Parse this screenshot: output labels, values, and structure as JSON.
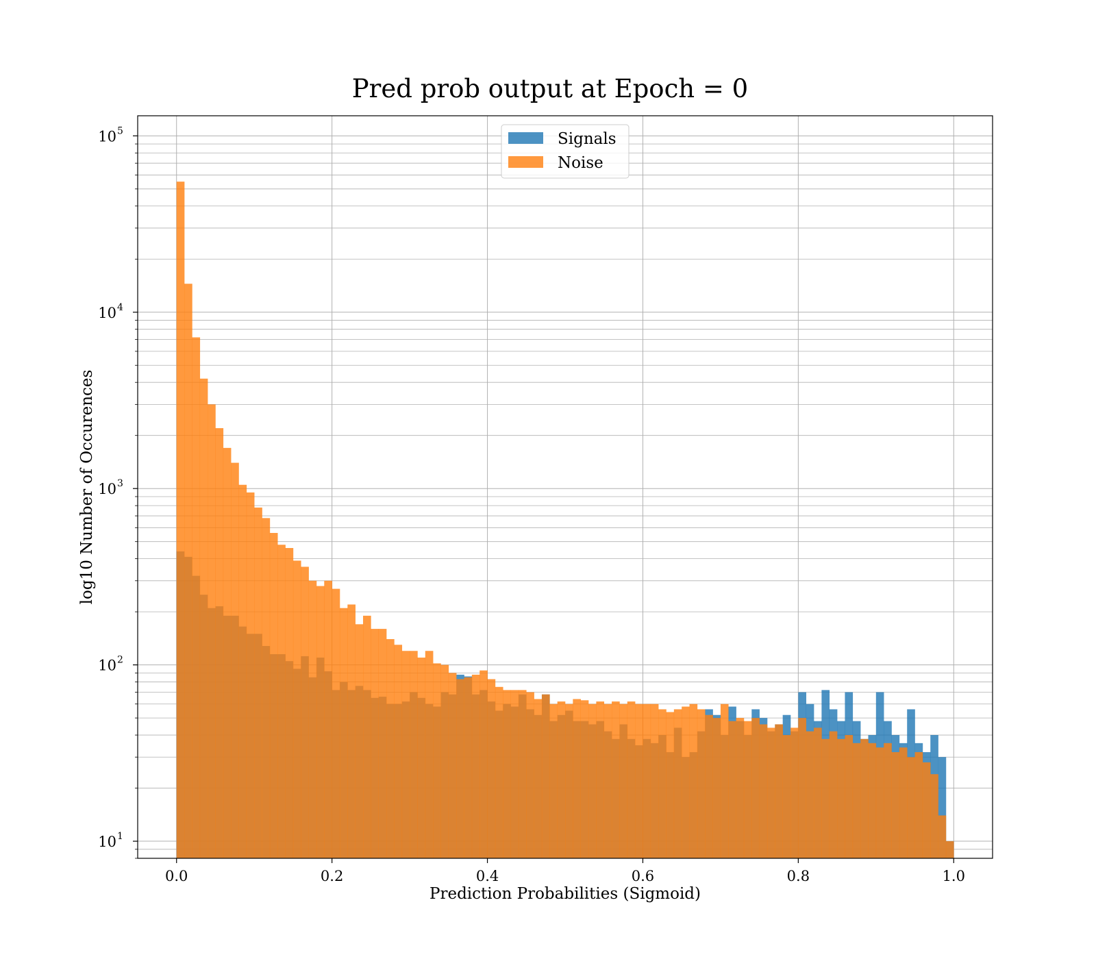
{
  "chart_data": {
    "type": "histogram",
    "title": "Pred prob output at Epoch = 0",
    "xlabel": "Prediction Probabilities (Sigmoid)",
    "ylabel": "log10 Number of Occurences",
    "y_scale": "log",
    "xlim": [
      -0.05,
      1.05
    ],
    "ylim": [
      8,
      130000
    ],
    "x_ticks": [
      0.0,
      0.2,
      0.4,
      0.6,
      0.8,
      1.0
    ],
    "x_tick_labels": [
      "0.0",
      "0.2",
      "0.4",
      "0.6",
      "0.8",
      "1.0"
    ],
    "y_ticks": [
      10,
      100,
      1000,
      10000,
      100000
    ],
    "y_tick_labels": [
      {
        "base": "10",
        "exp": "1"
      },
      {
        "base": "10",
        "exp": "2"
      },
      {
        "base": "10",
        "exp": "3"
      },
      {
        "base": "10",
        "exp": "4"
      },
      {
        "base": "10",
        "exp": "5"
      }
    ],
    "grid": true,
    "legend_position": "upper center",
    "bins": {
      "start": 0.0,
      "end": 1.0,
      "count": 100
    },
    "series": [
      {
        "name": "Signals",
        "color": "#1f77b4",
        "alpha": 0.8,
        "values": [
          440,
          410,
          320,
          250,
          210,
          215,
          190,
          190,
          165,
          150,
          150,
          128,
          115,
          115,
          105,
          95,
          112,
          85,
          110,
          92,
          72,
          80,
          72,
          76,
          72,
          65,
          66,
          60,
          60,
          62,
          70,
          65,
          60,
          58,
          70,
          68,
          88,
          86,
          68,
          72,
          62,
          55,
          60,
          58,
          68,
          56,
          52,
          68,
          48,
          52,
          55,
          48,
          48,
          46,
          48,
          42,
          38,
          46,
          38,
          35,
          38,
          36,
          40,
          32,
          44,
          30,
          32,
          42,
          56,
          52,
          40,
          58,
          48,
          40,
          56,
          50,
          42,
          46,
          52,
          42,
          70,
          60,
          48,
          72,
          56,
          48,
          70,
          48,
          38,
          40,
          70,
          48,
          40,
          36,
          56,
          36,
          32,
          40,
          30,
          10
        ]
      },
      {
        "name": "Noise",
        "color": "#ff7f0e",
        "alpha": 0.8,
        "values": [
          55000,
          14500,
          7200,
          4200,
          3000,
          2200,
          1700,
          1400,
          1050,
          950,
          780,
          680,
          560,
          480,
          460,
          390,
          360,
          300,
          280,
          300,
          270,
          210,
          220,
          170,
          190,
          160,
          160,
          140,
          130,
          120,
          120,
          110,
          120,
          102,
          100,
          90,
          83,
          85,
          88,
          93,
          83,
          75,
          72,
          72,
          72,
          70,
          64,
          68,
          60,
          62,
          60,
          64,
          63,
          60,
          62,
          60,
          62,
          60,
          62,
          60,
          60,
          60,
          56,
          54,
          56,
          58,
          60,
          56,
          52,
          50,
          60,
          48,
          50,
          48,
          50,
          46,
          44,
          46,
          40,
          44,
          50,
          42,
          44,
          38,
          42,
          38,
          40,
          36,
          38,
          36,
          34,
          36,
          32,
          34,
          30,
          32,
          28,
          24,
          14,
          10
        ]
      }
    ]
  }
}
